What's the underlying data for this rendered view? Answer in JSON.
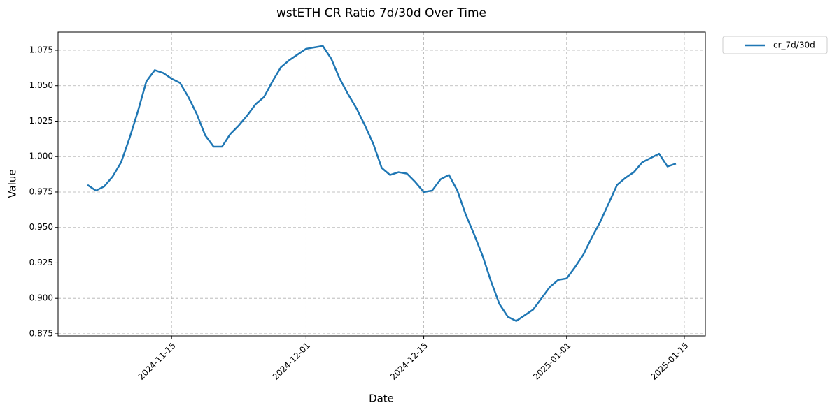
{
  "chart_data": {
    "type": "line",
    "title": "wstETH CR Ratio 7d/30d Over Time",
    "x_label": "Date",
    "y_label": "Value",
    "x": [
      "2024-11-05",
      "2024-11-06",
      "2024-11-07",
      "2024-11-08",
      "2024-11-09",
      "2024-11-10",
      "2024-11-11",
      "2024-11-12",
      "2024-11-13",
      "2024-11-14",
      "2024-11-15",
      "2024-11-16",
      "2024-11-17",
      "2024-11-18",
      "2024-11-19",
      "2024-11-20",
      "2024-11-21",
      "2024-11-22",
      "2024-11-23",
      "2024-11-24",
      "2024-11-25",
      "2024-11-26",
      "2024-11-27",
      "2024-11-28",
      "2024-11-29",
      "2024-11-30",
      "2024-12-01",
      "2024-12-02",
      "2024-12-03",
      "2024-12-04",
      "2024-12-05",
      "2024-12-06",
      "2024-12-07",
      "2024-12-08",
      "2024-12-09",
      "2024-12-10",
      "2024-12-11",
      "2024-12-12",
      "2024-12-13",
      "2024-12-14",
      "2024-12-15",
      "2024-12-16",
      "2024-12-17",
      "2024-12-18",
      "2024-12-19",
      "2024-12-20",
      "2024-12-21",
      "2024-12-22",
      "2024-12-23",
      "2024-12-24",
      "2024-12-25",
      "2024-12-26",
      "2024-12-27",
      "2024-12-28",
      "2024-12-29",
      "2024-12-30",
      "2024-12-31",
      "2025-01-01",
      "2025-01-02",
      "2025-01-03",
      "2025-01-04",
      "2025-01-05",
      "2025-01-06",
      "2025-01-07",
      "2025-01-08",
      "2025-01-09",
      "2025-01-10",
      "2025-01-11",
      "2025-01-12",
      "2025-01-13",
      "2025-01-14"
    ],
    "series": [
      {
        "name": "cr_7d/30d",
        "color": "#1f77b4",
        "values": [
          0.98,
          0.976,
          0.979,
          0.986,
          0.996,
          1.013,
          1.032,
          1.053,
          1.061,
          1.059,
          1.055,
          1.052,
          1.042,
          1.03,
          1.015,
          1.007,
          1.007,
          1.016,
          1.022,
          1.029,
          1.037,
          1.042,
          1.053,
          1.063,
          1.068,
          1.072,
          1.076,
          1.077,
          1.078,
          1.069,
          1.055,
          1.044,
          1.034,
          1.022,
          1.009,
          0.992,
          0.987,
          0.989,
          0.988,
          0.982,
          0.975,
          0.976,
          0.984,
          0.987,
          0.976,
          0.959,
          0.945,
          0.93,
          0.912,
          0.896,
          0.887,
          0.884,
          0.888,
          0.892,
          0.9,
          0.908,
          0.913,
          0.914,
          0.922,
          0.931,
          0.943,
          0.954,
          0.967,
          0.98,
          0.985,
          0.989,
          0.996,
          0.999,
          1.002,
          0.993,
          0.995
        ]
      }
    ],
    "xlim": [
      "2024-11-01T12:00:00Z",
      "2025-01-17T12:00:00Z"
    ],
    "xticks": [
      "2024-11-15",
      "2024-12-01",
      "2024-12-15",
      "2025-01-01",
      "2025-01-15"
    ],
    "ylim": [
      0.8735,
      1.0878
    ],
    "yticks": [
      0.875,
      {
        "value": 0.9,
        "label": "0.900"
      },
      0.925,
      {
        "value": 0.95,
        "label": "0.950"
      },
      0.975,
      {
        "value": 1.0,
        "label": "1.000"
      },
      1.025,
      {
        "value": 1.05,
        "label": "1.050"
      },
      1.075
    ],
    "grid": true,
    "legend": "outside-upper-right"
  }
}
